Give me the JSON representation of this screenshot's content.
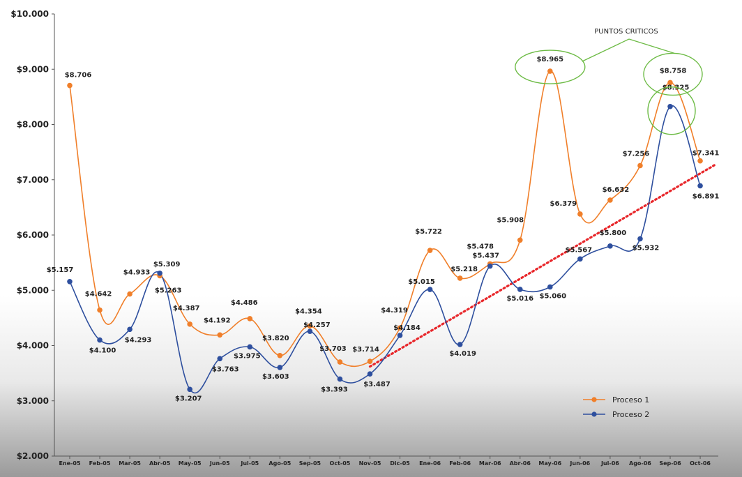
{
  "chart_data": {
    "type": "line",
    "categories": [
      "Ene-05",
      "Feb-05",
      "Mar-05",
      "Abr-05",
      "May-05",
      "Jun-05",
      "Jul-05",
      "Ago-05",
      "Sep-05",
      "Oct-05",
      "Nov-05",
      "Dic-05",
      "Ene-06",
      "Feb-06",
      "Mar-06",
      "Abr-06",
      "May-06",
      "Jun-06",
      "Jul-06",
      "Ago-06",
      "Sep-06",
      "Oct-06"
    ],
    "y_ticks": [
      "$2.000",
      "$3.000",
      "$4.000",
      "$5.000",
      "$6.000",
      "$7.000",
      "$8.000",
      "$9.000",
      "$10.000"
    ],
    "ylim": [
      2000,
      10000
    ],
    "series": [
      {
        "name": "Proceso 1",
        "color": "#f07f2a",
        "values": [
          8706,
          4642,
          4933,
          5263,
          4387,
          4192,
          4486,
          3820,
          4354,
          3703,
          3714,
          4319,
          5722,
          5218,
          5478,
          5908,
          8965,
          6379,
          6632,
          7256,
          8758,
          7341
        ],
        "labels": [
          "$8.706",
          "$4.642",
          "$4.933",
          "$5.263",
          "$4.387",
          "$4.192",
          "$4.486",
          "$3.820",
          "$4.354",
          "$3.703",
          "$3.714",
          "$4.319",
          "$5.722",
          "$5.218",
          "$5.478",
          "$5.908",
          "$8.965",
          "$6.379",
          "$6.632",
          "$7.256",
          "$8.758",
          "$7.341"
        ]
      },
      {
        "name": "Proceso  2",
        "color": "#2e4f9e",
        "values": [
          5157,
          4100,
          4293,
          5309,
          3207,
          3763,
          3975,
          3603,
          4257,
          3393,
          3487,
          4184,
          5015,
          4019,
          5437,
          5016,
          5060,
          5567,
          5800,
          5932,
          8325,
          6891
        ],
        "labels": [
          "$5.157",
          "$4.100",
          "$4.293",
          "$5.309",
          "$3.207",
          "$3.763",
          "$3.975",
          "$3.603",
          "$4.257",
          "$3.393",
          "$3.487",
          "$4.184",
          "$5.015",
          "$4.019",
          "$5.437",
          "$5.016",
          "$5.060",
          "$5.567",
          "$5.800",
          "$5.932",
          "$8.325",
          "$6.891"
        ]
      }
    ],
    "trendline": {
      "color": "#e8262a",
      "from": {
        "category": "Nov-05",
        "value": 3620
      },
      "to": {
        "category": "Oct-06",
        "value": 7200
      }
    },
    "annotation": {
      "text": "PUNTOS CRITICOS",
      "color": "#6dbb45",
      "targets": [
        "Proceso 1 · May-06",
        "Proceso 1 · Sep-06",
        "Proceso  2 · Sep-06"
      ]
    },
    "legend": {
      "position": "bottom-right"
    }
  }
}
